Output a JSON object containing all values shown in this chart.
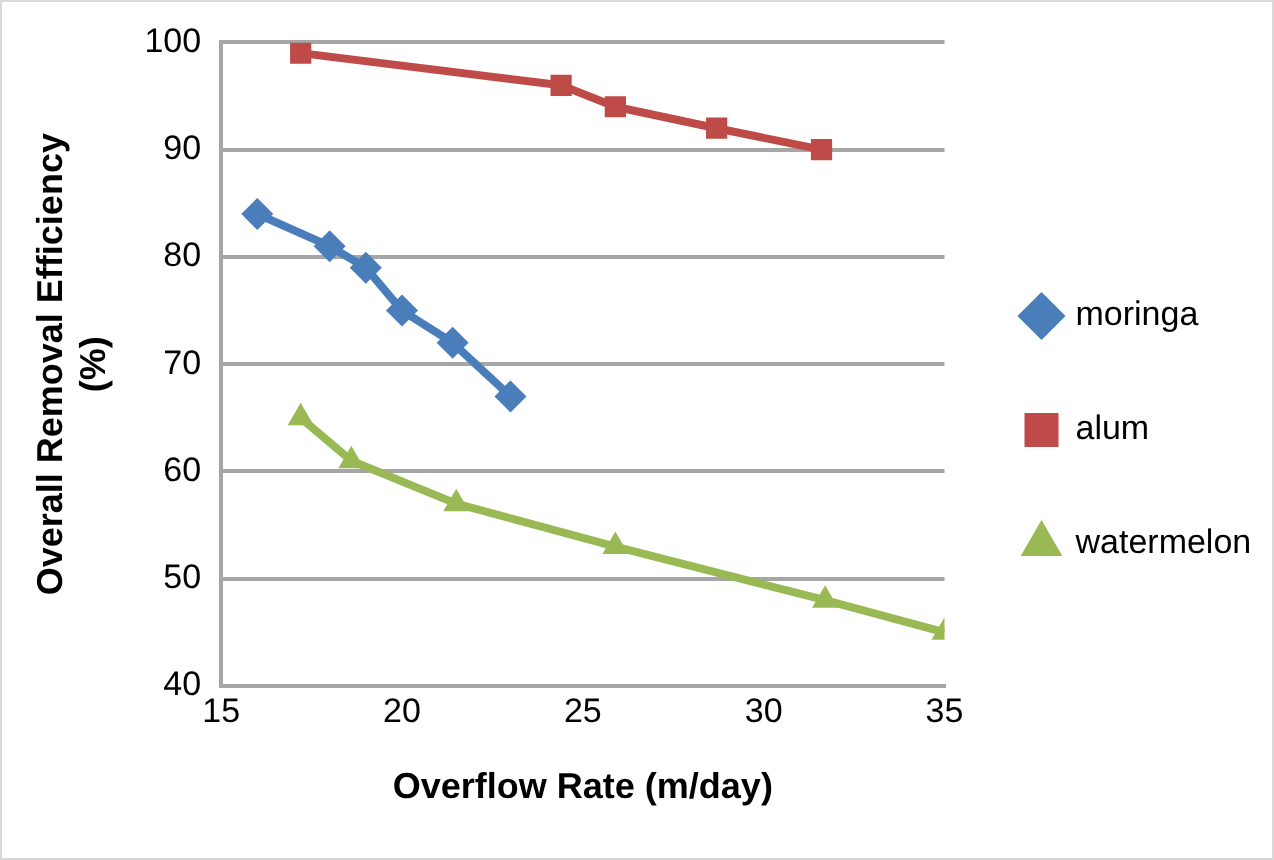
{
  "chart_data": {
    "type": "line",
    "xlabel": "Overflow Rate (m/day)",
    "ylabel": "Overall Removal Efficiency (%)",
    "xlim": [
      15,
      35
    ],
    "xticks": [
      15,
      20,
      25,
      30,
      35
    ],
    "ylim": [
      40,
      100
    ],
    "yticks": [
      40,
      50,
      60,
      70,
      80,
      90,
      100
    ],
    "grid": "y",
    "legend": "right",
    "line_style": "solid",
    "series": [
      {
        "name": "moringa",
        "color": "#4a7ebb",
        "marker": "diamond",
        "x": [
          16,
          18,
          19,
          20,
          21.4,
          23
        ],
        "values": [
          84,
          81,
          79,
          75,
          72,
          67
        ]
      },
      {
        "name": "alum",
        "color": "#be4b48",
        "marker": "square",
        "x": [
          17.2,
          24.4,
          25.9,
          28.7,
          31.6
        ],
        "values": [
          99,
          96,
          94,
          92,
          90
        ]
      },
      {
        "name": "watermelon",
        "color": "#98b954",
        "marker": "triangle",
        "x": [
          17.2,
          18.6,
          21.5,
          25.9,
          31.7,
          35
        ],
        "values": [
          65,
          61,
          57,
          53,
          48,
          45
        ]
      }
    ]
  }
}
